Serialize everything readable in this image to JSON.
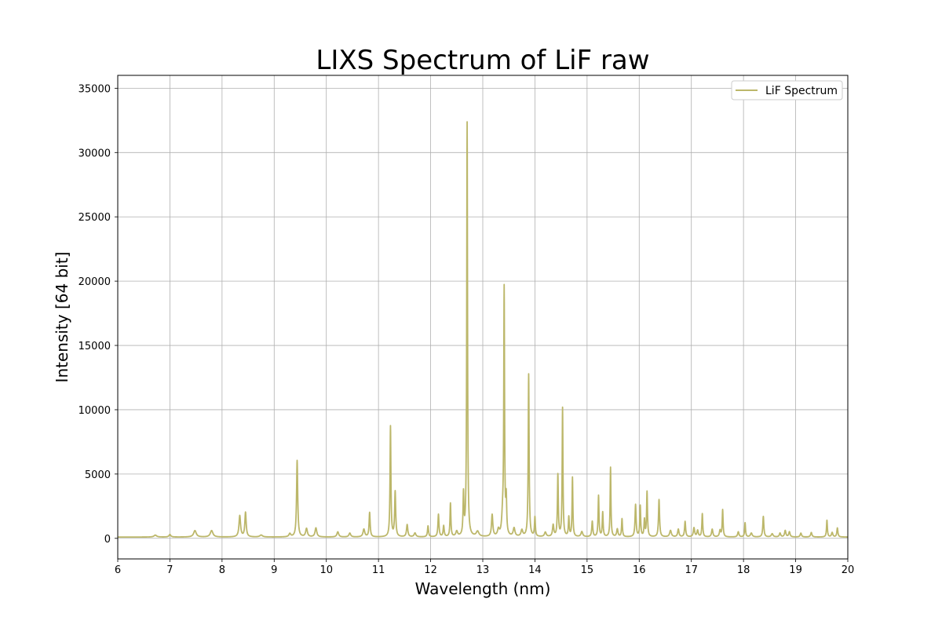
{
  "chart_data": {
    "type": "line",
    "title": "LIXS Spectrum of LiF raw",
    "xlabel": "Wavelength (nm)",
    "ylabel": "Intensity [64 bit]",
    "xlim": [
      6,
      20
    ],
    "ylim": [
      -1600,
      36000
    ],
    "xticks": [
      6,
      7,
      8,
      9,
      10,
      11,
      12,
      13,
      14,
      15,
      16,
      17,
      18,
      19,
      20
    ],
    "yticks": [
      0,
      5000,
      10000,
      15000,
      20000,
      25000,
      30000,
      35000
    ],
    "grid": true,
    "legend_position": "top-right",
    "baseline": 100,
    "series": [
      {
        "name": "LiF Spectrum",
        "color": "#bcb76a",
        "peaks": [
          {
            "x": 6.72,
            "y": 150,
            "w": 0.03
          },
          {
            "x": 7.0,
            "y": 200,
            "w": 0.02
          },
          {
            "x": 7.48,
            "y": 500,
            "w": 0.03
          },
          {
            "x": 7.8,
            "y": 500,
            "w": 0.03
          },
          {
            "x": 8.34,
            "y": 1650,
            "w": 0.018
          },
          {
            "x": 8.45,
            "y": 1900,
            "w": 0.015
          },
          {
            "x": 8.75,
            "y": 150,
            "w": 0.03
          },
          {
            "x": 9.3,
            "y": 250,
            "w": 0.02
          },
          {
            "x": 9.44,
            "y": 5950,
            "w": 0.013
          },
          {
            "x": 9.62,
            "y": 650,
            "w": 0.02
          },
          {
            "x": 9.8,
            "y": 700,
            "w": 0.02
          },
          {
            "x": 10.22,
            "y": 400,
            "w": 0.02
          },
          {
            "x": 10.45,
            "y": 300,
            "w": 0.02
          },
          {
            "x": 10.72,
            "y": 600,
            "w": 0.02
          },
          {
            "x": 10.83,
            "y": 1900,
            "w": 0.012
          },
          {
            "x": 11.23,
            "y": 8600,
            "w": 0.01
          },
          {
            "x": 11.32,
            "y": 3500,
            "w": 0.012
          },
          {
            "x": 11.55,
            "y": 950,
            "w": 0.015
          },
          {
            "x": 11.7,
            "y": 300,
            "w": 0.02
          },
          {
            "x": 11.95,
            "y": 850,
            "w": 0.012
          },
          {
            "x": 12.15,
            "y": 1750,
            "w": 0.012
          },
          {
            "x": 12.25,
            "y": 850,
            "w": 0.012
          },
          {
            "x": 12.38,
            "y": 2600,
            "w": 0.01
          },
          {
            "x": 12.5,
            "y": 400,
            "w": 0.02
          },
          {
            "x": 12.63,
            "y": 3200,
            "w": 0.01
          },
          {
            "x": 12.7,
            "y": 32200,
            "w": 0.009
          },
          {
            "x": 12.9,
            "y": 400,
            "w": 0.03
          },
          {
            "x": 13.18,
            "y": 1700,
            "w": 0.015
          },
          {
            "x": 13.3,
            "y": 500,
            "w": 0.02
          },
          {
            "x": 13.38,
            "y": 1400,
            "w": 0.02
          },
          {
            "x": 13.41,
            "y": 19000,
            "w": 0.009
          },
          {
            "x": 13.45,
            "y": 2700,
            "w": 0.01
          },
          {
            "x": 13.6,
            "y": 650,
            "w": 0.02
          },
          {
            "x": 13.75,
            "y": 500,
            "w": 0.02
          },
          {
            "x": 13.88,
            "y": 12650,
            "w": 0.01
          },
          {
            "x": 14.0,
            "y": 1500,
            "w": 0.01
          },
          {
            "x": 14.2,
            "y": 350,
            "w": 0.02
          },
          {
            "x": 14.35,
            "y": 900,
            "w": 0.015
          },
          {
            "x": 14.44,
            "y": 4800,
            "w": 0.01
          },
          {
            "x": 14.53,
            "y": 10000,
            "w": 0.009
          },
          {
            "x": 14.65,
            "y": 1500,
            "w": 0.01
          },
          {
            "x": 14.72,
            "y": 4600,
            "w": 0.009
          },
          {
            "x": 14.9,
            "y": 400,
            "w": 0.02
          },
          {
            "x": 15.1,
            "y": 1200,
            "w": 0.012
          },
          {
            "x": 15.22,
            "y": 3200,
            "w": 0.01
          },
          {
            "x": 15.3,
            "y": 1900,
            "w": 0.01
          },
          {
            "x": 15.45,
            "y": 5400,
            "w": 0.009
          },
          {
            "x": 15.58,
            "y": 600,
            "w": 0.015
          },
          {
            "x": 15.67,
            "y": 1400,
            "w": 0.01
          },
          {
            "x": 15.93,
            "y": 2500,
            "w": 0.012
          },
          {
            "x": 16.02,
            "y": 2400,
            "w": 0.01
          },
          {
            "x": 16.1,
            "y": 1300,
            "w": 0.01
          },
          {
            "x": 16.15,
            "y": 3500,
            "w": 0.01
          },
          {
            "x": 16.38,
            "y": 2900,
            "w": 0.012
          },
          {
            "x": 16.6,
            "y": 500,
            "w": 0.02
          },
          {
            "x": 16.75,
            "y": 600,
            "w": 0.015
          },
          {
            "x": 16.88,
            "y": 1200,
            "w": 0.012
          },
          {
            "x": 17.05,
            "y": 700,
            "w": 0.015
          },
          {
            "x": 17.12,
            "y": 500,
            "w": 0.015
          },
          {
            "x": 17.21,
            "y": 1800,
            "w": 0.01
          },
          {
            "x": 17.4,
            "y": 600,
            "w": 0.015
          },
          {
            "x": 17.55,
            "y": 500,
            "w": 0.015
          },
          {
            "x": 17.6,
            "y": 2100,
            "w": 0.01
          },
          {
            "x": 17.9,
            "y": 400,
            "w": 0.015
          },
          {
            "x": 18.03,
            "y": 1100,
            "w": 0.01
          },
          {
            "x": 18.15,
            "y": 300,
            "w": 0.02
          },
          {
            "x": 18.38,
            "y": 1600,
            "w": 0.012
          },
          {
            "x": 18.55,
            "y": 250,
            "w": 0.02
          },
          {
            "x": 18.7,
            "y": 300,
            "w": 0.015
          },
          {
            "x": 18.8,
            "y": 500,
            "w": 0.015
          },
          {
            "x": 18.88,
            "y": 400,
            "w": 0.015
          },
          {
            "x": 19.1,
            "y": 300,
            "w": 0.015
          },
          {
            "x": 19.3,
            "y": 350,
            "w": 0.015
          },
          {
            "x": 19.6,
            "y": 1300,
            "w": 0.01
          },
          {
            "x": 19.7,
            "y": 350,
            "w": 0.015
          },
          {
            "x": 19.8,
            "y": 700,
            "w": 0.012
          }
        ]
      }
    ]
  }
}
